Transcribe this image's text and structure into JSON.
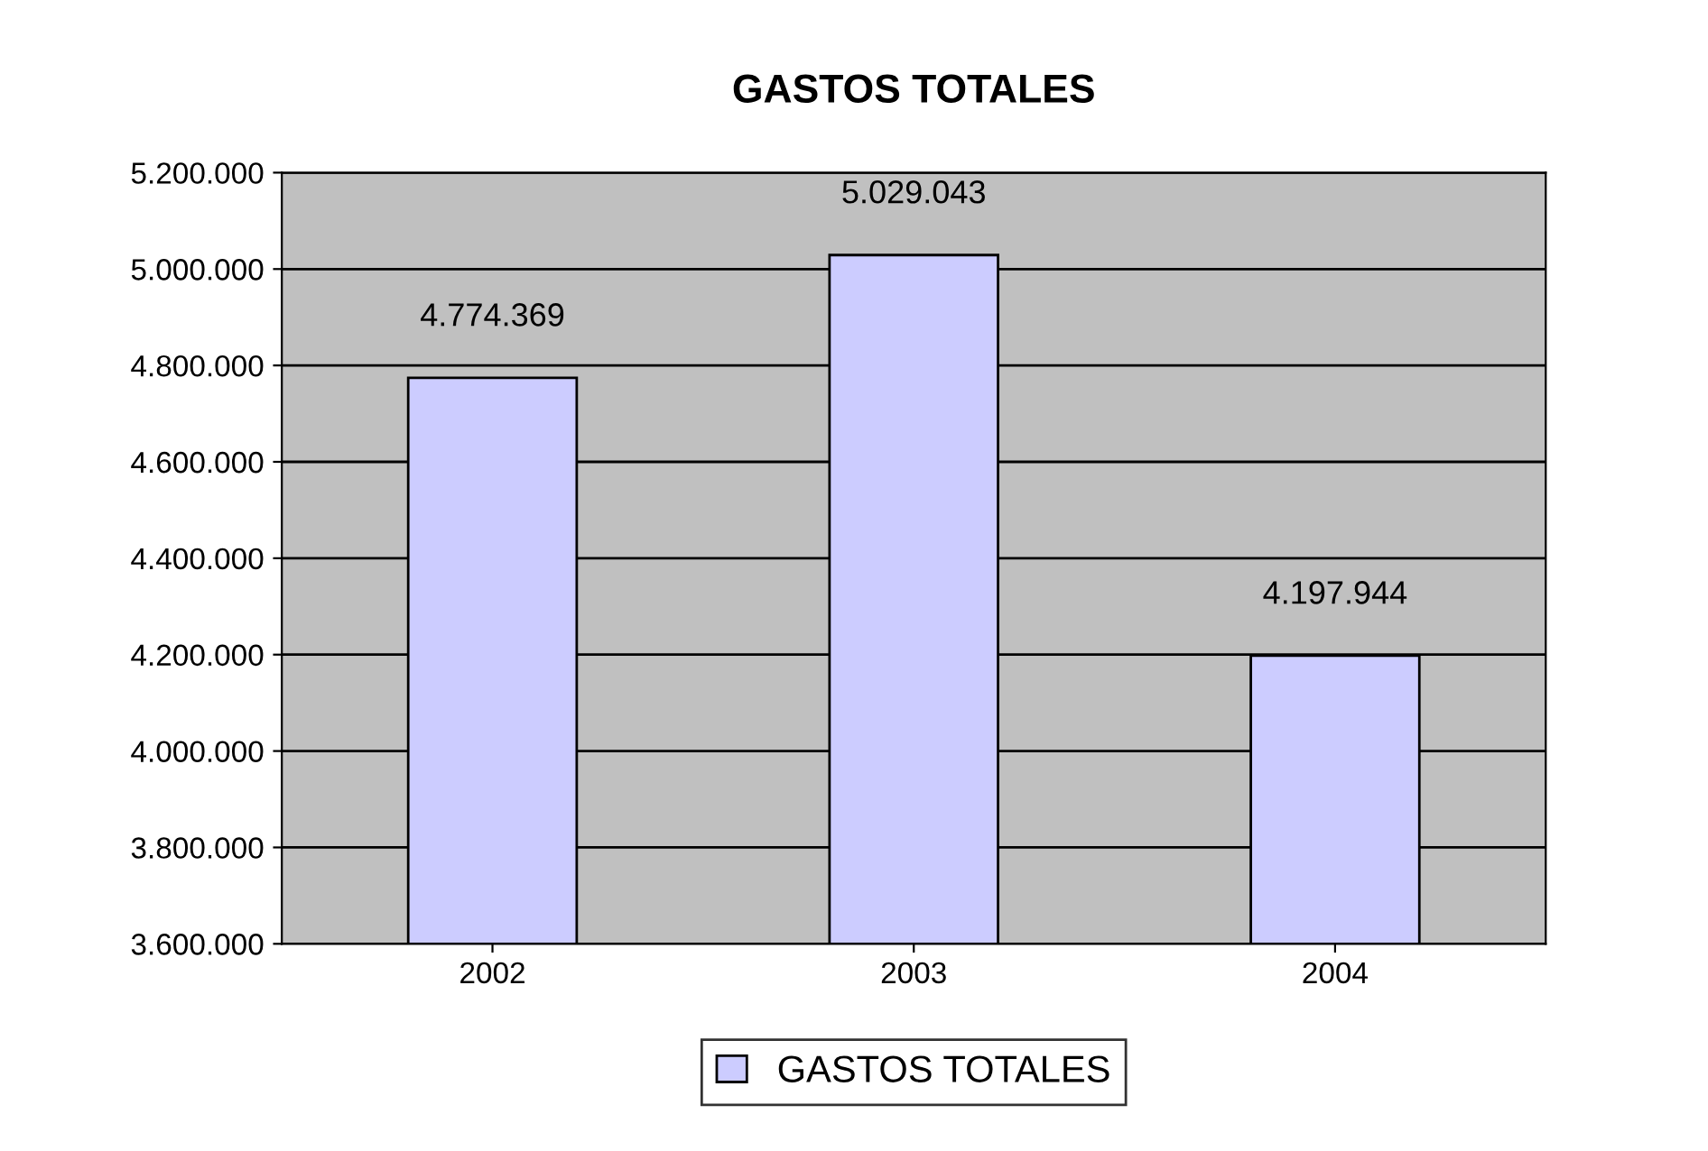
{
  "chart_data": {
    "type": "bar",
    "title": "GASTOS TOTALES",
    "categories": [
      "2002",
      "2003",
      "2004"
    ],
    "series": [
      {
        "name": "GASTOS TOTALES",
        "color": "#ccccff",
        "values": [
          4774369,
          5029043,
          4197944
        ],
        "value_labels": [
          "4.774.369",
          "5.029.043",
          "4.197.944"
        ]
      }
    ],
    "ylim": [
      3600000,
      5200000
    ],
    "yticks": [
      {
        "value": 3600000,
        "label": "3.600.000"
      },
      {
        "value": 3800000,
        "label": "3.800.000"
      },
      {
        "value": 4000000,
        "label": "4.000.000"
      },
      {
        "value": 4200000,
        "label": "4.200.000"
      },
      {
        "value": 4400000,
        "label": "4.400.000"
      },
      {
        "value": 4600000,
        "label": "4.600.000"
      },
      {
        "value": 4800000,
        "label": "4.800.000"
      },
      {
        "value": 5000000,
        "label": "5.000.000"
      },
      {
        "value": 5200000,
        "label": "5.200.000"
      }
    ],
    "grid": "y",
    "legend": "bottom"
  }
}
